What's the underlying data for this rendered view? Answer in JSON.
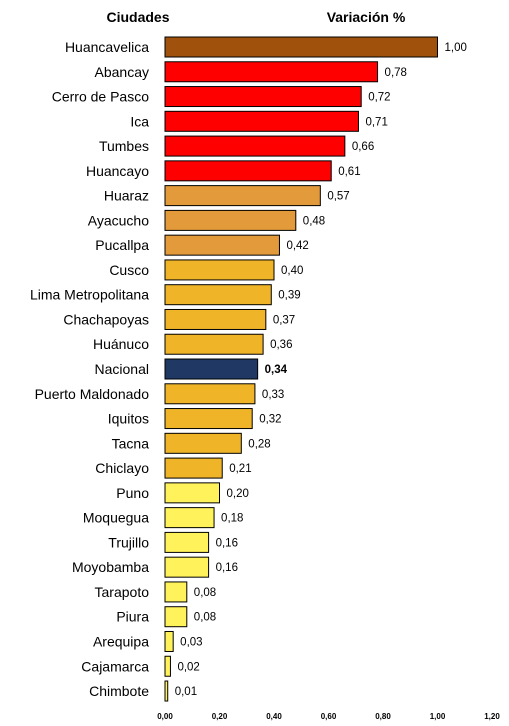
{
  "chart_data": {
    "type": "bar",
    "orientation": "horizontal",
    "header_left": "Ciudades",
    "header_right": "Variación %",
    "categories": [
      "Huancavelica",
      "Abancay",
      "Cerro de Pasco",
      "Ica",
      "Tumbes",
      "Huancayo",
      "Huaraz",
      "Ayacucho",
      "Pucallpa",
      "Cusco",
      "Lima Metropolitana",
      "Chachapoyas",
      "Huánuco",
      "Nacional",
      "Puerto Maldonado",
      "Iquitos",
      "Tacna",
      "Chiclayo",
      "Puno",
      "Moquegua",
      "Trujillo",
      "Moyobamba",
      "Tarapoto",
      "Piura",
      "Arequipa",
      "Cajamarca",
      "Chimbote"
    ],
    "values": [
      1.0,
      0.78,
      0.72,
      0.71,
      0.66,
      0.61,
      0.57,
      0.48,
      0.42,
      0.4,
      0.39,
      0.37,
      0.36,
      0.34,
      0.33,
      0.32,
      0.28,
      0.21,
      0.2,
      0.18,
      0.16,
      0.16,
      0.08,
      0.08,
      0.03,
      0.02,
      0.01
    ],
    "value_labels": [
      "1,00",
      "0,78",
      "0,72",
      "0,71",
      "0,66",
      "0,61",
      "0,57",
      "0,48",
      "0,42",
      "0,40",
      "0,39",
      "0,37",
      "0,36",
      "0,34",
      "0,33",
      "0,32",
      "0,28",
      "0,21",
      "0,20",
      "0,18",
      "0,16",
      "0,16",
      "0,08",
      "0,08",
      "0,03",
      "0,02",
      "0,01"
    ],
    "bar_colors": [
      "#a0520c",
      "#ff0000",
      "#ff0000",
      "#ff0000",
      "#ff0000",
      "#ff0000",
      "#e39a3a",
      "#e39a3a",
      "#e39a3a",
      "#f0b429",
      "#f0b429",
      "#f0b429",
      "#f0b429",
      "#1f3864",
      "#f0b429",
      "#f0b429",
      "#f0b429",
      "#f0b429",
      "#fff25a",
      "#fff25a",
      "#fff25a",
      "#fff25a",
      "#fff25a",
      "#fff25a",
      "#fff25a",
      "#fff25a",
      "#fff25a"
    ],
    "highlight": "Nacional",
    "xlim": [
      0,
      1.2
    ],
    "x_ticks": [
      "0,00",
      "0,20",
      "0,40",
      "0,60",
      "0,80",
      "1,00",
      "1,20"
    ],
    "grid": false
  }
}
